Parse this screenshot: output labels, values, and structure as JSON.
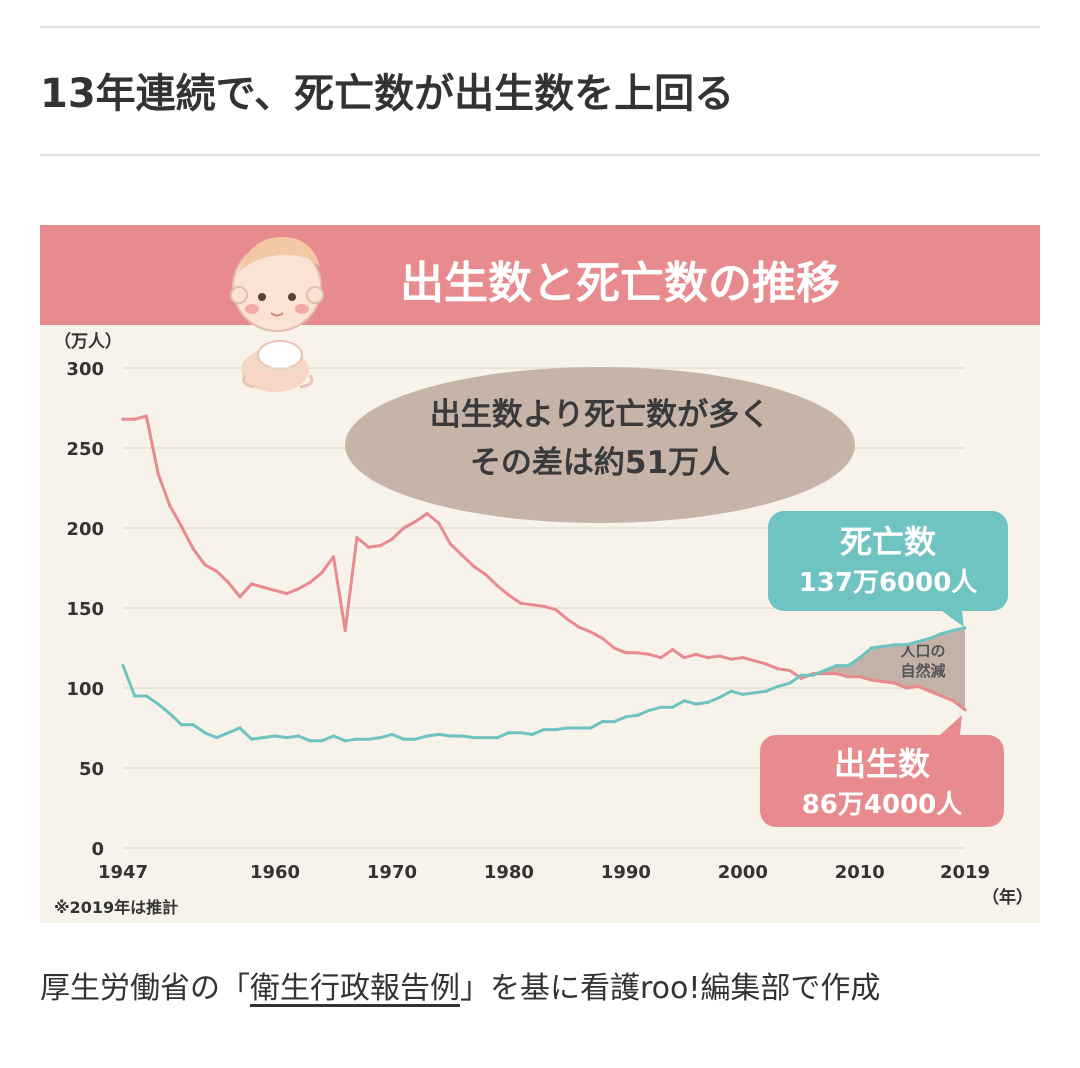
{
  "article": {
    "heading": "13年連続で、死亡数が出生数を上回る",
    "caption_prefix": "厚生労働省の「",
    "caption_link": "衛生行政報告例",
    "caption_suffix": "」を基に看護roo!編集部で作成"
  },
  "colors": {
    "banner": "#e88b8f",
    "births": "#e88b8f",
    "deaths": "#6fc3c0",
    "bubble": "#c7b4a8",
    "plot_bg": "#f7f3ea",
    "gap_fill": "#c2b2a8"
  },
  "illustration": {
    "icon": "baby-icon"
  },
  "chart_data": {
    "type": "line",
    "title": "出生数と死亡数の推移",
    "ylabel": "（万人）",
    "xlabel": "（年）",
    "ylim": [
      0,
      300
    ],
    "xlim": [
      1947,
      2019
    ],
    "yticks": [
      0,
      50,
      100,
      150,
      200,
      250,
      300
    ],
    "xticks": [
      1947,
      1960,
      1970,
      1980,
      1990,
      2000,
      2010,
      2019
    ],
    "note": "※2019年は推計",
    "bubble_line1": "出生数より死亡数が多く",
    "bubble_line2": "その差は約51万人",
    "gap_label_line1": "人口の",
    "gap_label_line2": "自然減",
    "series": [
      {
        "name": "出生数",
        "value_label": "86万4000人",
        "x": [
          1947,
          1948,
          1949,
          1950,
          1951,
          1952,
          1953,
          1954,
          1955,
          1956,
          1957,
          1958,
          1959,
          1960,
          1961,
          1962,
          1963,
          1964,
          1965,
          1966,
          1967,
          1968,
          1969,
          1970,
          1971,
          1972,
          1973,
          1974,
          1975,
          1976,
          1977,
          1978,
          1979,
          1980,
          1981,
          1982,
          1983,
          1984,
          1985,
          1986,
          1987,
          1988,
          1989,
          1990,
          1991,
          1992,
          1993,
          1994,
          1995,
          1996,
          1997,
          1998,
          1999,
          2000,
          2001,
          2002,
          2003,
          2004,
          2005,
          2006,
          2007,
          2008,
          2009,
          2010,
          2011,
          2012,
          2013,
          2014,
          2015,
          2016,
          2017,
          2018,
          2019
        ],
        "values": [
          268,
          268,
          270,
          234,
          214,
          201,
          187,
          177,
          173,
          166,
          157,
          165,
          163,
          161,
          159,
          162,
          166,
          172,
          182,
          136,
          194,
          188,
          189,
          193,
          200,
          204,
          209,
          203,
          190,
          183,
          176,
          171,
          164,
          158,
          153,
          152,
          151,
          149,
          143,
          138,
          135,
          131,
          125,
          122,
          122,
          121,
          119,
          124,
          119,
          121,
          119,
          120,
          118,
          119,
          117,
          115,
          112,
          111,
          106,
          109,
          109,
          109,
          107,
          107,
          105,
          104,
          103,
          100,
          101,
          98,
          95,
          92,
          86.4
        ]
      },
      {
        "name": "死亡数",
        "value_label": "137万6000人",
        "x": [
          1947,
          1948,
          1949,
          1950,
          1951,
          1952,
          1953,
          1954,
          1955,
          1956,
          1957,
          1958,
          1959,
          1960,
          1961,
          1962,
          1963,
          1964,
          1965,
          1966,
          1967,
          1968,
          1969,
          1970,
          1971,
          1972,
          1973,
          1974,
          1975,
          1976,
          1977,
          1978,
          1979,
          1980,
          1981,
          1982,
          1983,
          1984,
          1985,
          1986,
          1987,
          1988,
          1989,
          1990,
          1991,
          1992,
          1993,
          1994,
          1995,
          1996,
          1997,
          1998,
          1999,
          2000,
          2001,
          2002,
          2003,
          2004,
          2005,
          2006,
          2007,
          2008,
          2009,
          2010,
          2011,
          2012,
          2013,
          2014,
          2015,
          2016,
          2017,
          2018,
          2019
        ],
        "values": [
          114,
          95,
          95,
          90,
          84,
          77,
          77,
          72,
          69,
          72,
          75,
          68,
          69,
          70,
          69,
          70,
          67,
          67,
          70,
          67,
          68,
          68,
          69,
          71,
          68,
          68,
          70,
          71,
          70,
          70,
          69,
          69,
          69,
          72,
          72,
          71,
          74,
          74,
          75,
          75,
          75,
          79,
          79,
          82,
          83,
          86,
          88,
          88,
          92,
          90,
          91,
          94,
          98,
          96,
          97,
          98,
          101,
          103,
          108,
          108,
          111,
          114,
          114,
          119,
          125,
          126,
          127,
          127,
          129,
          131,
          134,
          136,
          137.6
        ]
      }
    ]
  }
}
